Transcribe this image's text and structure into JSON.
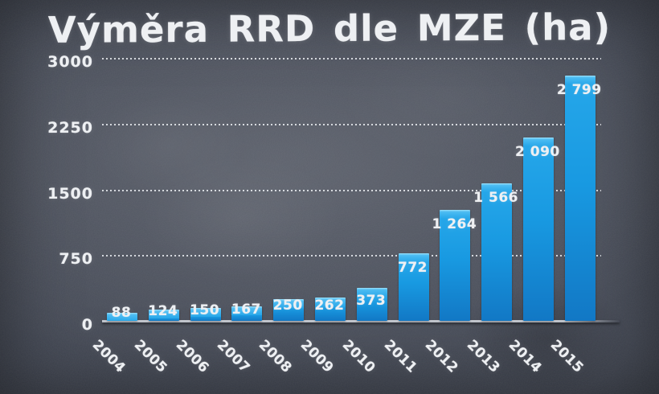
{
  "chart_data": {
    "type": "bar",
    "title": "Výměra RRD dle MZE (ha)",
    "categories": [
      "2004",
      "2005",
      "2006",
      "2007",
      "2008",
      "2009",
      "2010",
      "2011",
      "2012",
      "2013",
      "2014",
      "2015"
    ],
    "values": [
      88,
      124,
      150,
      167,
      250,
      262,
      373,
      772,
      1264,
      1566,
      2090,
      2799
    ],
    "value_labels": [
      "88",
      "124",
      "150",
      "167",
      "250",
      "262",
      "373",
      "772",
      "1 264",
      "1 566",
      "2 090",
      "2 799"
    ],
    "yticks": [
      0,
      750,
      1500,
      2250,
      3000
    ],
    "ytick_labels": [
      "0",
      "750",
      "1500",
      "2250",
      "3000"
    ],
    "ylim": [
      0,
      3000
    ],
    "xlabel": "",
    "ylabel": "",
    "grid": "horizontal-dotted",
    "legend_position": "none",
    "style": "chalkboard",
    "colors": {
      "bar": "#1899e1",
      "bar_highlight": "#9be0fa",
      "bar_bottom": "#1278c5",
      "label_text": "#eef0f3",
      "gridline": "#ebeef2",
      "axis_line": "#c6cad1",
      "background": "#40454f"
    }
  }
}
